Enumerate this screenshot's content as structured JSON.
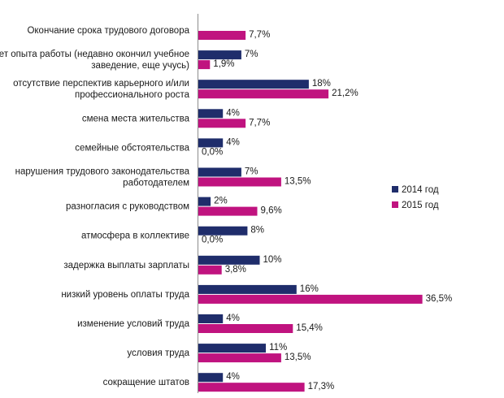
{
  "chart_data": {
    "type": "bar",
    "orientation": "horizontal",
    "title": "",
    "xlabel": "",
    "ylabel": "",
    "categories": [
      [
        "Окончание срока трудового договора"
      ],
      [
        "нет опыта работы (недавно окончил учебное",
        "заведение, еще учусь)"
      ],
      [
        "отсутствие перспектив карьерного и/или",
        "профессионального роста"
      ],
      [
        "смена места жительства"
      ],
      [
        "семейные обстоятельства"
      ],
      [
        "нарушения трудового законодательства",
        "работодателем"
      ],
      [
        "разногласия с руководством"
      ],
      [
        "атмосфера в коллективе"
      ],
      [
        "задержка выплаты зарплаты"
      ],
      [
        "низкий уровень оплаты труда"
      ],
      [
        "изменение условий труда"
      ],
      [
        "условия труда"
      ],
      [
        "сокращение штатов"
      ]
    ],
    "series": [
      {
        "name": "2014 год",
        "color": "#1f2d6b",
        "values": [
          null,
          7,
          18,
          4,
          4,
          7,
          2,
          8,
          10,
          16,
          4,
          11,
          4
        ],
        "labels": [
          "",
          "7%",
          "18%",
          "4%",
          "4%",
          "7%",
          "2%",
          "8%",
          "10%",
          "16%",
          "4%",
          "11%",
          "4%"
        ]
      },
      {
        "name": "2015 год",
        "color": "#c0137f",
        "values": [
          7.7,
          1.9,
          21.2,
          7.7,
          0.0,
          13.5,
          9.6,
          0.0,
          3.8,
          36.5,
          15.4,
          13.5,
          17.3
        ],
        "labels": [
          "7,7%",
          "1,9%",
          "21,2%",
          "7,7%",
          "0,0%",
          "13,5%",
          "9,6%",
          "0,0%",
          "3,8%",
          "36,5%",
          "15,4%",
          "13,5%",
          "17,3%"
        ]
      }
    ],
    "xlim": [
      0,
      36.5
    ],
    "grid": false,
    "legend_position": "right"
  }
}
